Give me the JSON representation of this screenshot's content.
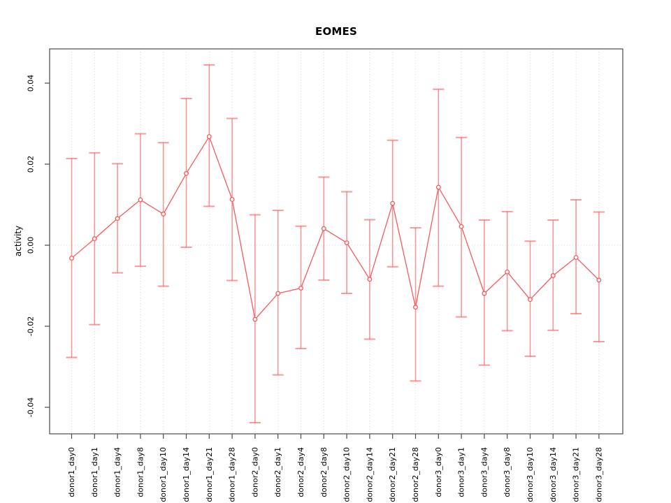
{
  "chart_data": {
    "type": "line",
    "title": "EOMES",
    "xlabel": "",
    "ylabel": "activity",
    "ylim": [
      -0.0466,
      0.0485
    ],
    "yticks": [
      0.04,
      0.02,
      0.0,
      -0.02,
      -0.04
    ],
    "ytick_labels": [
      "0.04",
      "0.02",
      "0.00",
      "-0.02",
      "-0.04"
    ],
    "grid": "vertical dotted gridline at each category; dotted horizontal line at zero",
    "legend_position": "none",
    "categories": [
      "donor1_day0",
      "donor1_day1",
      "donor1_day4",
      "donor1_day8",
      "donor1_day10",
      "donor1_day14",
      "donor1_day21",
      "donor1_day28",
      "donor2_day0",
      "donor2_day1",
      "donor2_day4",
      "donor2_day8",
      "donor2_day10",
      "donor2_day14",
      "donor2_day21",
      "donor2_day28",
      "donor3_day0",
      "donor3_day1",
      "donor3_day4",
      "donor3_day8",
      "donor3_day10",
      "donor3_day14",
      "donor3_day21",
      "donor3_day28"
    ],
    "series": [
      {
        "name": "activity",
        "marker": "open-circle",
        "values": [
          -0.0032,
          0.0016,
          0.0066,
          0.0112,
          0.0077,
          0.0177,
          0.0268,
          0.0113,
          -0.0183,
          -0.0119,
          -0.0106,
          0.0041,
          0.0006,
          -0.0084,
          0.0103,
          -0.0153,
          0.0143,
          0.0046,
          -0.0119,
          -0.0066,
          -0.0134,
          -0.0075,
          -0.003,
          -0.0086
        ],
        "error_high": [
          0.0214,
          0.0228,
          0.0201,
          0.0275,
          0.0253,
          0.0362,
          0.0445,
          0.0313,
          0.0075,
          0.0086,
          0.0047,
          0.0168,
          0.0132,
          0.0063,
          0.0259,
          0.0043,
          0.0385,
          0.0266,
          0.0062,
          0.0083,
          0.001,
          0.0062,
          0.0112,
          0.0082
        ],
        "error_low": [
          -0.0277,
          -0.0196,
          -0.0068,
          -0.0052,
          -0.0101,
          -0.0005,
          0.0096,
          -0.0087,
          -0.0438,
          -0.032,
          -0.0255,
          -0.0086,
          -0.0119,
          -0.0232,
          -0.0053,
          -0.0335,
          -0.0101,
          -0.0177,
          -0.0296,
          -0.0211,
          -0.0274,
          -0.021,
          -0.0169,
          -0.0238
        ]
      }
    ],
    "colors": {
      "series": "#F85A5A",
      "error_bar": "rgba(248,90,90,0.62)",
      "grid": "#D6D6D6",
      "zero_line": "#DCDCDC",
      "axis": "#4A4A4A",
      "text": "#000000"
    }
  }
}
